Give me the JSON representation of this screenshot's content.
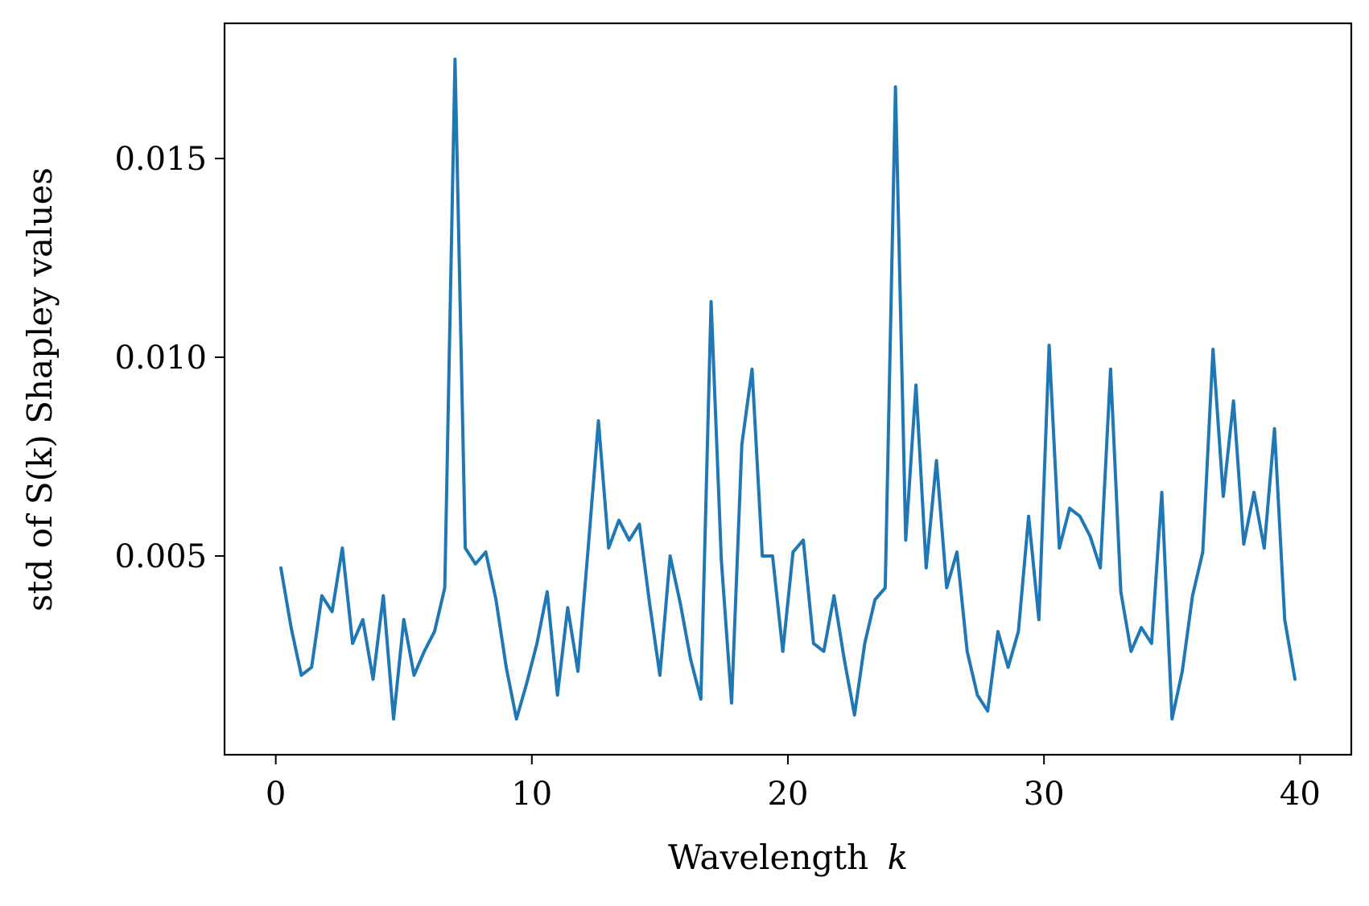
{
  "chart_data": {
    "type": "line",
    "title": "",
    "xlabel": "Wavelength",
    "xlabel_var": "k",
    "ylabel": "std of S(k) Shapley values",
    "xlim": [
      -2,
      42
    ],
    "ylim": [
      0.0,
      0.0184
    ],
    "x_ticks": [
      0,
      10,
      20,
      30,
      40
    ],
    "x_tick_labels": [
      "0",
      "10",
      "20",
      "30",
      "40"
    ],
    "y_ticks": [
      0.005,
      0.01,
      0.015
    ],
    "y_tick_labels": [
      "0.005",
      "0.010",
      "0.015"
    ],
    "grid": false,
    "legend": "none",
    "colors": {
      "line": "#1f77b4",
      "axes": "#000000"
    },
    "series": [
      {
        "x": [
          0.2,
          0.6,
          1.0,
          1.4,
          1.8,
          2.2,
          2.6,
          3.0,
          3.4,
          3.8,
          4.2,
          4.6,
          5.0,
          5.4,
          5.8,
          6.2,
          6.6,
          7.0,
          7.4,
          7.8,
          8.2,
          8.6,
          9.0,
          9.4,
          9.8,
          10.2,
          10.6,
          11.0,
          11.4,
          11.8,
          12.2,
          12.6,
          13.0,
          13.4,
          13.8,
          14.2,
          14.6,
          15.0,
          15.4,
          15.8,
          16.2,
          16.6,
          17.0,
          17.4,
          17.8,
          18.2,
          18.6,
          19.0,
          19.4,
          19.8,
          20.2,
          20.6,
          21.0,
          21.4,
          21.8,
          22.2,
          22.6,
          23.0,
          23.4,
          23.8,
          24.2,
          24.6,
          25.0,
          25.4,
          25.8,
          26.2,
          26.6,
          27.0,
          27.4,
          27.8,
          28.2,
          28.6,
          29.0,
          29.4,
          29.8,
          30.2,
          30.6,
          31.0,
          31.4,
          31.8,
          32.2,
          32.6,
          33.0,
          33.4,
          33.8,
          34.2,
          34.6,
          35.0,
          35.4,
          35.8,
          36.2,
          36.6,
          37.0,
          37.4,
          37.8,
          38.2,
          38.6,
          39.0,
          39.4,
          39.8
        ],
        "values": [
          0.0047,
          0.0032,
          0.002,
          0.0022,
          0.004,
          0.0036,
          0.0052,
          0.0028,
          0.0034,
          0.0019,
          0.004,
          0.0009,
          0.0034,
          0.002,
          0.0026,
          0.0031,
          0.0042,
          0.0175,
          0.0052,
          0.0048,
          0.0051,
          0.0039,
          0.0022,
          0.0009,
          0.0018,
          0.0028,
          0.0041,
          0.0015,
          0.0037,
          0.0021,
          0.0052,
          0.0084,
          0.0052,
          0.0059,
          0.0054,
          0.0058,
          0.0038,
          0.002,
          0.005,
          0.0038,
          0.0024,
          0.0014,
          0.0114,
          0.0049,
          0.0013,
          0.0078,
          0.0097,
          0.005,
          0.005,
          0.0026,
          0.0051,
          0.0054,
          0.0028,
          0.0026,
          0.004,
          0.0024,
          0.001,
          0.0028,
          0.0039,
          0.0042,
          0.0168,
          0.0054,
          0.0093,
          0.0047,
          0.0074,
          0.0042,
          0.0051,
          0.0026,
          0.0015,
          0.0011,
          0.0031,
          0.0022,
          0.0031,
          0.006,
          0.0034,
          0.0103,
          0.0052,
          0.0062,
          0.006,
          0.0055,
          0.0047,
          0.0097,
          0.0041,
          0.0026,
          0.0032,
          0.0028,
          0.0066,
          0.0009,
          0.0021,
          0.004,
          0.0051,
          0.0102,
          0.0065,
          0.0089,
          0.0053,
          0.0066,
          0.0052,
          0.0082,
          0.0034,
          0.0019
        ]
      }
    ]
  }
}
